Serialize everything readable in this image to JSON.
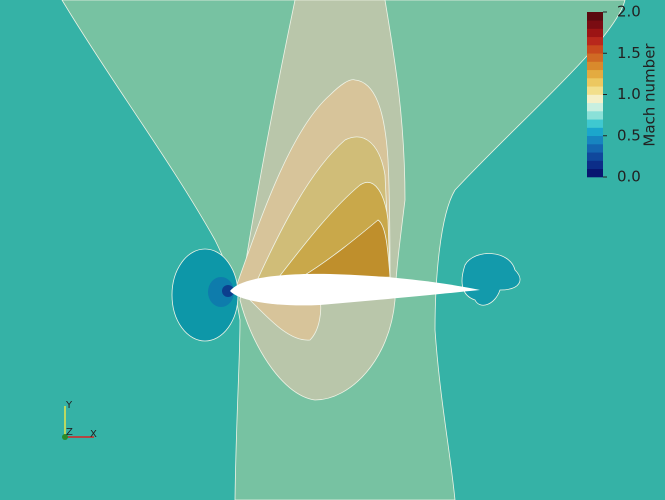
{
  "colorbar": {
    "title": "Mach number",
    "range": [
      0,
      2
    ],
    "ticks": [
      {
        "value": 0,
        "label": "0.0"
      },
      {
        "value": 0.5,
        "label": "0.5"
      },
      {
        "value": 1,
        "label": "1.0"
      },
      {
        "value": 1.5,
        "label": "1.5"
      },
      {
        "value": 2,
        "label": "2.0"
      }
    ],
    "colors": [
      "#081670",
      "#0c2d88",
      "#10489c",
      "#1466b0",
      "#1785c0",
      "#1ba6cc",
      "#3fc8d0",
      "#8ae0d8",
      "#c8efe0",
      "#f5f0c8",
      "#f2df8c",
      "#ecc860",
      "#e3ab40",
      "#d98a2c",
      "#d06a24",
      "#c84a1e",
      "#b8281c",
      "#9c1414",
      "#7a0c12",
      "#5a0a0f"
    ]
  },
  "axes_triad": {
    "x": "X",
    "y": "Y",
    "z": "Z"
  }
}
